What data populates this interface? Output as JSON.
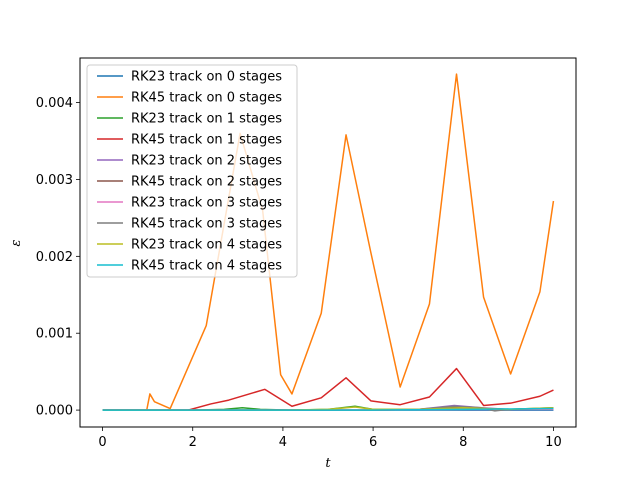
{
  "chart_data": {
    "type": "line",
    "title": "",
    "xlabel": "t",
    "ylabel": "ε",
    "xlim": [
      -0.5,
      10.5
    ],
    "ylim": [
      -0.00022,
      0.00458
    ],
    "xticks": [
      0,
      2,
      4,
      6,
      8,
      10
    ],
    "xtick_labels": [
      "0",
      "2",
      "4",
      "6",
      "8",
      "10"
    ],
    "yticks": [
      0,
      0.001,
      0.002,
      0.003,
      0.004
    ],
    "ytick_labels": [
      "0.000",
      "0.001",
      "0.002",
      "0.003",
      "0.004"
    ],
    "grid": false,
    "legend_position": "upper-left",
    "series": [
      {
        "name": "RK23 track on 0 stages",
        "color": "#1f77b4",
        "x": [
          0,
          0.5,
          1.0,
          1.5,
          2.0,
          2.5,
          3.0,
          3.5,
          4.0,
          4.5,
          5.0,
          5.5,
          6.0,
          6.5,
          7.0,
          7.5,
          8.0,
          8.5,
          9.0,
          9.5,
          10.0
        ],
        "y": [
          0,
          0,
          0,
          0,
          0,
          0,
          0,
          0,
          0,
          0,
          0,
          0,
          0,
          0,
          0,
          0,
          0,
          0,
          0,
          0,
          0
        ]
      },
      {
        "name": "RK45 track on 0 stages",
        "color": "#ff7f0e",
        "x": [
          0,
          0.5,
          0.98,
          1.05,
          1.15,
          1.5,
          2.3,
          3.05,
          3.55,
          3.95,
          4.2,
          4.85,
          5.4,
          5.95,
          6.6,
          7.25,
          7.85,
          8.45,
          9.05,
          9.7,
          10.0
        ],
        "y": [
          0,
          0,
          0,
          0.00021,
          0.00011,
          2e-05,
          0.0011,
          0.0036,
          0.0026,
          0.00046,
          0.00021,
          0.00126,
          0.00358,
          0.00205,
          0.0003,
          0.00138,
          0.00437,
          0.00147,
          0.00047,
          0.00154,
          0.00272
        ]
      },
      {
        "name": "RK23 track on 1 stages",
        "color": "#2ca02c",
        "x": [
          0,
          1,
          2,
          2.7,
          3.1,
          3.5,
          4.2,
          5.0,
          5.6,
          6.0,
          7.0,
          8.0,
          9.0,
          10.0
        ],
        "y": [
          0,
          0,
          0,
          1e-05,
          3e-05,
          1e-05,
          0,
          1e-05,
          5e-05,
          1e-05,
          1e-05,
          2e-05,
          1e-05,
          3e-05
        ]
      },
      {
        "name": "RK45 track on 1 stages",
        "color": "#d62728",
        "x": [
          0,
          1,
          1.9,
          2.4,
          2.8,
          3.6,
          4.2,
          4.85,
          5.4,
          5.95,
          6.6,
          7.25,
          7.85,
          8.45,
          9.05,
          9.7,
          10.0
        ],
        "y": [
          0,
          0,
          0,
          8e-05,
          0.00013,
          0.00027,
          5e-05,
          0.00016,
          0.00042,
          0.00012,
          7e-05,
          0.00017,
          0.00054,
          6e-05,
          9e-05,
          0.00018,
          0.00026
        ]
      },
      {
        "name": "RK23 track on 2 stages",
        "color": "#9467bd",
        "x": [
          0,
          2,
          4,
          6,
          7.0,
          7.8,
          8.4,
          9.0,
          10.0
        ],
        "y": [
          0,
          0,
          0,
          0,
          1e-05,
          6e-05,
          3e-05,
          1e-05,
          2e-05
        ]
      },
      {
        "name": "RK45 track on 2 stages",
        "color": "#8c564b",
        "x": [
          0,
          2,
          4,
          6,
          7.0,
          7.8,
          8.4,
          9.0,
          10.0
        ],
        "y": [
          0,
          0,
          0,
          0,
          1e-05,
          4e-05,
          2e-05,
          1e-05,
          2e-05
        ]
      },
      {
        "name": "RK23 track on 3 stages",
        "color": "#e377c2",
        "x": [
          0,
          2,
          4,
          6,
          8,
          10
        ],
        "y": [
          0,
          0,
          0,
          0,
          1e-05,
          1e-05
        ]
      },
      {
        "name": "RK45 track on 3 stages",
        "color": "#7f7f7f",
        "x": [
          0,
          2,
          4,
          6,
          7.0,
          7.8,
          8.4,
          8.7,
          9.0,
          10.0
        ],
        "y": [
          0,
          0,
          0,
          0,
          1e-05,
          5e-05,
          3e-05,
          -1e-05,
          1e-05,
          2e-05
        ]
      },
      {
        "name": "RK23 track on 4 stages",
        "color": "#bcbd22",
        "x": [
          0,
          2,
          4,
          5.0,
          5.6,
          6.0,
          7.0,
          8.0,
          9.0,
          10.0
        ],
        "y": [
          0,
          0,
          0,
          1e-05,
          4e-05,
          1e-05,
          1e-05,
          3e-05,
          1e-05,
          3e-05
        ]
      },
      {
        "name": "RK45 track on 4 stages",
        "color": "#17becf",
        "x": [
          0,
          2,
          4,
          6,
          8,
          10
        ],
        "y": [
          0,
          0,
          0,
          0,
          1e-05,
          2e-05
        ]
      }
    ]
  }
}
